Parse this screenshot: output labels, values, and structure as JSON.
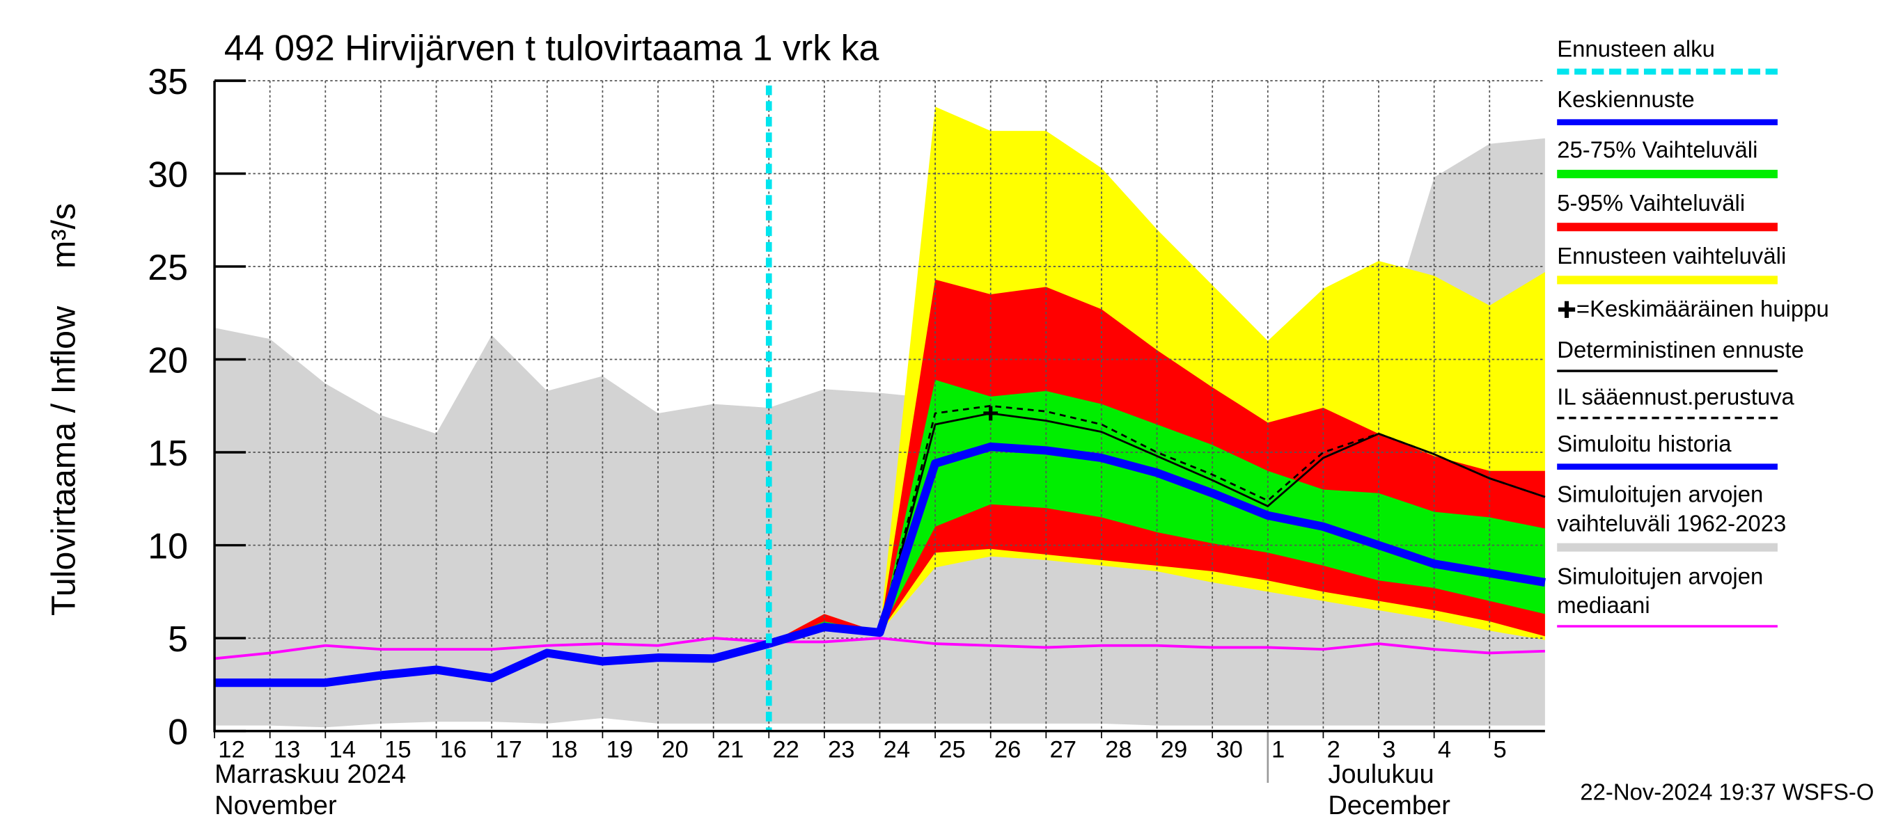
{
  "chart_data": {
    "type": "line",
    "title": "44 092 Hirvijärven t tulovirtaama 1 vrk ka",
    "ylabel": "Tulovirtaama / Inflow    m³/s",
    "footer": "22-Nov-2024 19:37 WSFS-O",
    "months": [
      {
        "lines": [
          "Marraskuu 2024",
          "November"
        ]
      },
      {
        "lines": [
          "Joulukuu",
          "December"
        ]
      }
    ],
    "x": [
      0,
      1,
      2,
      3,
      4,
      5,
      6,
      7,
      8,
      9,
      10,
      11,
      12,
      13,
      14,
      15,
      16,
      17,
      18,
      19,
      20,
      21,
      22,
      23,
      24
    ],
    "xlim": [
      0,
      24
    ],
    "xticks": [
      {
        "value": 0,
        "label": "12"
      },
      {
        "value": 1,
        "label": "13"
      },
      {
        "value": 2,
        "label": "14"
      },
      {
        "value": 3,
        "label": "15"
      },
      {
        "value": 4,
        "label": "16"
      },
      {
        "value": 5,
        "label": "17"
      },
      {
        "value": 6,
        "label": "18"
      },
      {
        "value": 7,
        "label": "19"
      },
      {
        "value": 8,
        "label": "20"
      },
      {
        "value": 9,
        "label": "21"
      },
      {
        "value": 10,
        "label": "22"
      },
      {
        "value": 11,
        "label": "23"
      },
      {
        "value": 12,
        "label": "24"
      },
      {
        "value": 13,
        "label": "25"
      },
      {
        "value": 14,
        "label": "26"
      },
      {
        "value": 15,
        "label": "27"
      },
      {
        "value": 16,
        "label": "28"
      },
      {
        "value": 17,
        "label": "29"
      },
      {
        "value": 18,
        "label": "30"
      },
      {
        "value": 19,
        "label": "1"
      },
      {
        "value": 20,
        "label": "2"
      },
      {
        "value": 21,
        "label": "3"
      },
      {
        "value": 22,
        "label": "4"
      },
      {
        "value": 23,
        "label": "5"
      }
    ],
    "ylim": [
      0,
      35
    ],
    "yticks": [
      0,
      5,
      10,
      15,
      20,
      25,
      30,
      35
    ],
    "grid": true,
    "forecast_start": {
      "name": "Ennusteen alku",
      "x": 10,
      "color": "#00e5ee"
    },
    "peak": {
      "name": "=Keskimääräinen huippu",
      "x": 14,
      "y": 17.1
    },
    "series": [
      {
        "name": "Keskiennuste",
        "color": "#0000ff",
        "kind": "line",
        "linestyle": "thick",
        "values": [
          null,
          null,
          null,
          null,
          null,
          null,
          null,
          null,
          null,
          null,
          4.7,
          5.6,
          5.3,
          14.4,
          15.3,
          15.1,
          14.7,
          13.9,
          12.8,
          11.6,
          11.0,
          10.0,
          9.0,
          8.5,
          8.0
        ]
      },
      {
        "name": "25-75% Vaihteluväli",
        "color": "#00ee00",
        "kind": "band",
        "upper": [
          null,
          null,
          null,
          null,
          null,
          null,
          null,
          null,
          null,
          null,
          4.7,
          5.9,
          5.3,
          18.9,
          18.0,
          18.3,
          17.6,
          16.5,
          15.4,
          14.0,
          13.0,
          12.8,
          11.8,
          11.5,
          10.9
        ],
        "lower": [
          null,
          null,
          null,
          null,
          null,
          null,
          null,
          null,
          null,
          null,
          4.7,
          5.6,
          5.3,
          11.0,
          12.2,
          12.0,
          11.5,
          10.7,
          10.1,
          9.6,
          8.9,
          8.1,
          7.7,
          7.0,
          6.3
        ]
      },
      {
        "name": "5-95% Vaihteluväli",
        "color": "#ff0000",
        "kind": "band",
        "upper": [
          null,
          null,
          null,
          null,
          null,
          null,
          null,
          null,
          null,
          null,
          4.7,
          6.3,
          5.3,
          24.3,
          23.5,
          23.9,
          22.7,
          20.5,
          18.5,
          16.6,
          17.4,
          16.0,
          14.8,
          14.0,
          14.0
        ],
        "lower": [
          null,
          null,
          null,
          null,
          null,
          null,
          null,
          null,
          null,
          null,
          4.7,
          5.5,
          5.3,
          9.6,
          9.8,
          9.5,
          9.2,
          8.9,
          8.6,
          8.1,
          7.5,
          7.0,
          6.5,
          5.9,
          5.1
        ]
      },
      {
        "name": "Ennusteen vaihteluväli",
        "color": "#ffff00",
        "kind": "band",
        "upper": [
          null,
          null,
          null,
          null,
          null,
          null,
          null,
          null,
          null,
          null,
          4.7,
          6.3,
          5.3,
          33.6,
          32.3,
          32.3,
          30.3,
          27.0,
          24.0,
          21.0,
          23.8,
          25.3,
          24.5,
          22.9,
          24.7
        ],
        "lower": [
          null,
          null,
          null,
          null,
          null,
          null,
          null,
          null,
          null,
          null,
          4.7,
          5.4,
          5.3,
          8.8,
          9.4,
          9.2,
          8.9,
          8.6,
          8.0,
          7.5,
          7.0,
          6.5,
          6.0,
          5.4,
          4.9
        ]
      },
      {
        "name": "Deterministinen ennuste",
        "color": "#000000",
        "kind": "line",
        "linestyle": "thin",
        "values": [
          null,
          null,
          null,
          null,
          null,
          null,
          null,
          null,
          null,
          null,
          4.7,
          5.7,
          5.3,
          16.5,
          17.1,
          16.7,
          16.1,
          14.8,
          13.5,
          12.1,
          14.7,
          16.0,
          14.9,
          13.6,
          12.6
        ]
      },
      {
        "name": "IL sääennust.perustuva",
        "color": "#000000",
        "kind": "line",
        "linestyle": "dashed",
        "values": [
          null,
          null,
          null,
          null,
          null,
          null,
          null,
          null,
          null,
          null,
          4.7,
          5.7,
          5.3,
          17.1,
          17.5,
          17.2,
          16.5,
          15.0,
          13.8,
          12.4,
          15.0,
          16.0,
          14.9,
          13.6,
          12.6
        ]
      },
      {
        "name": "Simuloitu historia",
        "color": "#0000ff",
        "kind": "line",
        "linestyle": "thick",
        "values": [
          2.6,
          2.6,
          2.6,
          3.0,
          3.3,
          2.85,
          4.2,
          3.75,
          3.95,
          3.9,
          4.7,
          null,
          null,
          null,
          null,
          null,
          null,
          null,
          null,
          null,
          null,
          null,
          null,
          null,
          null
        ]
      },
      {
        "name": "Simuloitujen arvojen vaihteluväli 1962-2023",
        "color": "#d3d3d3",
        "kind": "band",
        "upper": [
          21.7,
          21.1,
          18.7,
          17.0,
          16.0,
          21.3,
          18.3,
          19.1,
          17.1,
          17.6,
          17.4,
          18.4,
          18.2,
          17.9,
          18.1,
          18.2,
          18.0,
          16.4,
          15.6,
          17.3,
          18.3,
          20.0,
          29.8,
          31.6,
          31.9
        ],
        "lower": [
          0.3,
          0.3,
          0.2,
          0.4,
          0.5,
          0.5,
          0.4,
          0.7,
          0.4,
          0.4,
          0.4,
          0.4,
          0.4,
          0.4,
          0.4,
          0.4,
          0.4,
          0.3,
          0.3,
          0.3,
          0.3,
          0.3,
          0.3,
          0.3,
          0.3
        ]
      },
      {
        "name": "Simuloitujen arvojen mediaani",
        "color": "#ff00ff",
        "kind": "line",
        "linestyle": "medium",
        "values": [
          3.9,
          4.2,
          4.6,
          4.4,
          4.4,
          4.4,
          4.6,
          4.7,
          4.6,
          5.0,
          4.8,
          4.8,
          5.0,
          4.7,
          4.6,
          4.5,
          4.6,
          4.6,
          4.5,
          4.5,
          4.4,
          4.7,
          4.4,
          4.2,
          4.3
        ]
      }
    ]
  }
}
